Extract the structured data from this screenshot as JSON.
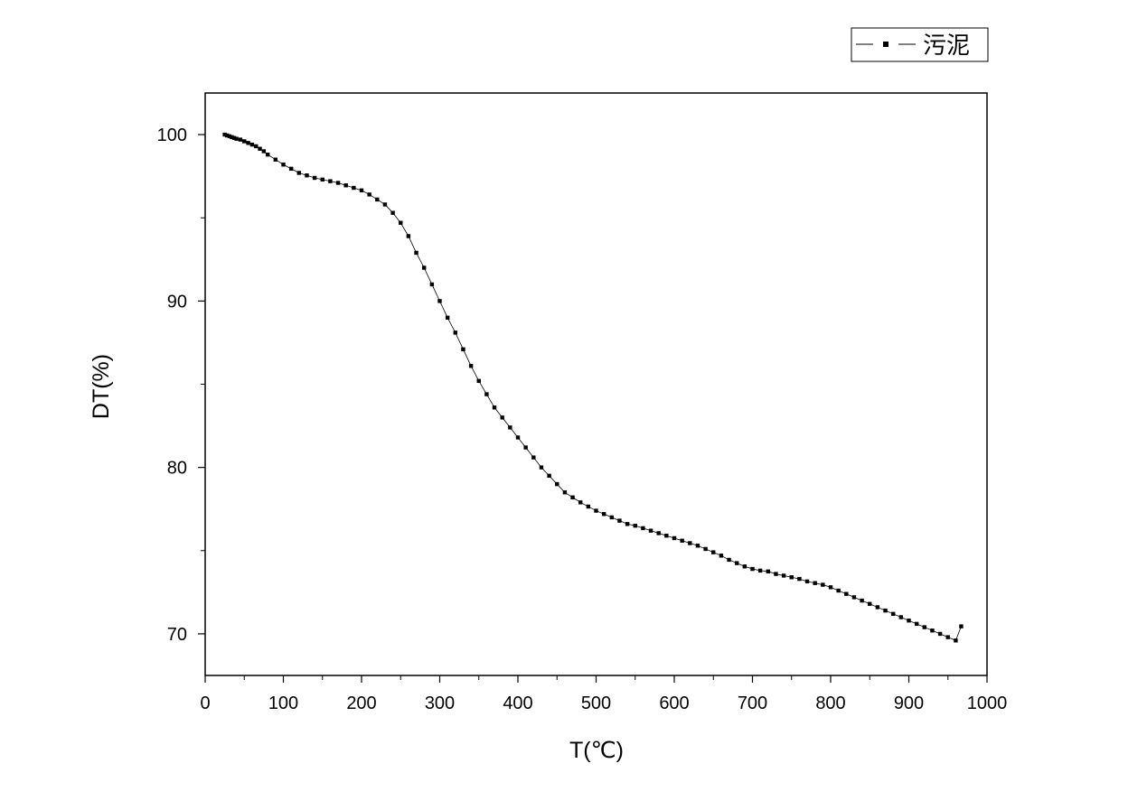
{
  "chart_data": {
    "type": "line",
    "xlabel": "T(℃)",
    "ylabel": "DT(%)",
    "xlim": [
      0,
      1000
    ],
    "ylim": [
      67.5,
      102.5
    ],
    "x_ticks": [
      "0",
      "100",
      "200",
      "300",
      "400",
      "500",
      "600",
      "700",
      "800",
      "900",
      "1000"
    ],
    "y_ticks": [
      "70",
      "80",
      "90",
      "100"
    ],
    "grid": false,
    "legend_position": "top-right",
    "marker": "square",
    "color": "#000000",
    "series": [
      {
        "name": "污泥",
        "x": [
          25,
          28,
          31,
          34,
          37,
          40,
          45,
          50,
          55,
          60,
          65,
          70,
          75,
          80,
          90,
          100,
          110,
          120,
          130,
          140,
          150,
          160,
          170,
          180,
          190,
          200,
          210,
          220,
          230,
          240,
          250,
          260,
          270,
          280,
          290,
          300,
          310,
          320,
          330,
          340,
          350,
          360,
          370,
          380,
          390,
          400,
          410,
          420,
          430,
          440,
          450,
          460,
          470,
          480,
          490,
          500,
          510,
          520,
          530,
          540,
          550,
          560,
          570,
          580,
          590,
          600,
          610,
          620,
          630,
          640,
          650,
          660,
          670,
          680,
          690,
          700,
          710,
          720,
          730,
          740,
          750,
          760,
          770,
          780,
          790,
          800,
          810,
          820,
          830,
          840,
          850,
          860,
          870,
          880,
          890,
          900,
          910,
          920,
          930,
          940,
          950,
          960,
          967
        ],
        "y": [
          100.0,
          99.95,
          99.9,
          99.85,
          99.8,
          99.75,
          99.7,
          99.6,
          99.5,
          99.4,
          99.3,
          99.15,
          99.0,
          98.8,
          98.5,
          98.2,
          97.95,
          97.7,
          97.55,
          97.4,
          97.3,
          97.2,
          97.1,
          96.95,
          96.8,
          96.65,
          96.4,
          96.1,
          95.8,
          95.3,
          94.7,
          93.9,
          92.9,
          92.0,
          91.0,
          90.0,
          89.0,
          88.1,
          87.1,
          86.1,
          85.2,
          84.4,
          83.6,
          83.0,
          82.4,
          81.8,
          81.2,
          80.6,
          80.0,
          79.5,
          79.0,
          78.5,
          78.2,
          77.9,
          77.65,
          77.4,
          77.2,
          77.0,
          76.8,
          76.6,
          76.5,
          76.35,
          76.2,
          76.05,
          75.9,
          75.75,
          75.6,
          75.45,
          75.3,
          75.1,
          74.9,
          74.7,
          74.45,
          74.25,
          74.05,
          73.9,
          73.8,
          73.75,
          73.6,
          73.5,
          73.4,
          73.3,
          73.15,
          73.05,
          72.95,
          72.8,
          72.6,
          72.4,
          72.2,
          72.0,
          71.8,
          71.6,
          71.4,
          71.2,
          71.0,
          70.8,
          70.6,
          70.4,
          70.2,
          70.0,
          69.8,
          69.6,
          70.45
        ]
      }
    ]
  }
}
